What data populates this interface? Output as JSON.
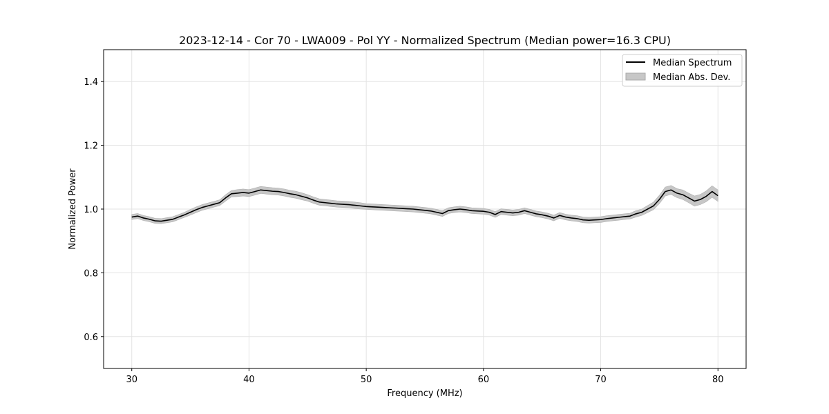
{
  "chart_data": {
    "type": "line",
    "title": "2023-12-14 - Cor 70 - LWA009 - Pol YY - Normalized Spectrum (Median power=16.3 CPU)",
    "xlabel": "Frequency (MHz)",
    "ylabel": "Normalized Power",
    "xlim": [
      27.6,
      82.4
    ],
    "ylim": [
      0.5,
      1.5
    ],
    "x_ticks": [
      30,
      40,
      50,
      60,
      70,
      80
    ],
    "x_tick_labels": [
      "30",
      "40",
      "50",
      "60",
      "70",
      "80"
    ],
    "y_ticks": [
      0.6,
      0.8,
      1.0,
      1.2,
      1.4
    ],
    "y_tick_labels": [
      "0.6",
      "0.8",
      "1.0",
      "1.2",
      "1.4"
    ],
    "grid": true,
    "legend_position": "top-right",
    "legend": [
      {
        "label": "Median Spectrum",
        "kind": "line",
        "color": "#000000"
      },
      {
        "label": "Median Abs. Dev.",
        "kind": "band",
        "color": "#c7c7c7"
      }
    ],
    "series": [
      {
        "name": "Median Spectrum",
        "color": "#000000",
        "band_color": "#c7c7c7",
        "x": [
          30.0,
          30.5,
          31.0,
          31.5,
          32.0,
          32.5,
          33.0,
          33.5,
          34.0,
          34.5,
          35.0,
          35.5,
          36.0,
          36.5,
          37.0,
          37.5,
          38.0,
          38.5,
          39.0,
          39.5,
          40.0,
          40.5,
          41.0,
          41.5,
          42.0,
          42.5,
          43.0,
          43.5,
          44.0,
          44.5,
          45.0,
          45.5,
          46.0,
          46.5,
          47.0,
          47.5,
          48.0,
          48.5,
          49.0,
          49.5,
          50.0,
          50.5,
          51.0,
          51.5,
          52.0,
          52.5,
          53.0,
          53.5,
          54.0,
          54.5,
          55.0,
          55.5,
          56.0,
          56.5,
          57.0,
          57.5,
          58.0,
          58.5,
          59.0,
          59.5,
          60.0,
          60.5,
          61.0,
          61.5,
          62.0,
          62.5,
          63.0,
          63.5,
          64.0,
          64.5,
          65.0,
          65.5,
          66.0,
          66.5,
          67.0,
          67.5,
          68.0,
          68.5,
          69.0,
          69.5,
          70.0,
          70.5,
          71.0,
          71.5,
          72.0,
          72.5,
          73.0,
          73.5,
          74.0,
          74.5,
          75.0,
          75.5,
          76.0,
          76.5,
          77.0,
          77.5,
          78.0,
          78.5,
          79.0,
          79.5,
          80.0
        ],
        "values": [
          0.975,
          0.978,
          0.972,
          0.968,
          0.963,
          0.962,
          0.965,
          0.968,
          0.975,
          0.982,
          0.99,
          0.998,
          1.005,
          1.01,
          1.015,
          1.02,
          1.035,
          1.048,
          1.05,
          1.052,
          1.05,
          1.055,
          1.06,
          1.058,
          1.056,
          1.055,
          1.052,
          1.048,
          1.045,
          1.04,
          1.035,
          1.028,
          1.022,
          1.02,
          1.018,
          1.016,
          1.015,
          1.014,
          1.012,
          1.01,
          1.008,
          1.007,
          1.006,
          1.005,
          1.004,
          1.003,
          1.002,
          1.001,
          1.0,
          0.998,
          0.996,
          0.994,
          0.99,
          0.986,
          0.995,
          0.998,
          1.0,
          0.998,
          0.995,
          0.994,
          0.993,
          0.99,
          0.983,
          0.992,
          0.99,
          0.988,
          0.99,
          0.995,
          0.99,
          0.985,
          0.982,
          0.978,
          0.972,
          0.98,
          0.975,
          0.972,
          0.97,
          0.966,
          0.965,
          0.966,
          0.967,
          0.97,
          0.972,
          0.974,
          0.976,
          0.978,
          0.985,
          0.99,
          1.0,
          1.01,
          1.03,
          1.055,
          1.06,
          1.05,
          1.045,
          1.035,
          1.025,
          1.03,
          1.04,
          1.055,
          1.042
        ],
        "mad": [
          0.008,
          0.008,
          0.008,
          0.008,
          0.008,
          0.008,
          0.008,
          0.008,
          0.008,
          0.008,
          0.009,
          0.009,
          0.009,
          0.009,
          0.009,
          0.009,
          0.01,
          0.01,
          0.011,
          0.011,
          0.011,
          0.011,
          0.011,
          0.011,
          0.011,
          0.011,
          0.011,
          0.011,
          0.011,
          0.011,
          0.01,
          0.01,
          0.01,
          0.01,
          0.01,
          0.01,
          0.01,
          0.01,
          0.01,
          0.01,
          0.009,
          0.009,
          0.009,
          0.009,
          0.009,
          0.009,
          0.009,
          0.009,
          0.009,
          0.009,
          0.009,
          0.009,
          0.009,
          0.009,
          0.009,
          0.009,
          0.009,
          0.009,
          0.009,
          0.009,
          0.009,
          0.009,
          0.009,
          0.009,
          0.009,
          0.009,
          0.009,
          0.009,
          0.009,
          0.009,
          0.009,
          0.009,
          0.009,
          0.009,
          0.009,
          0.009,
          0.009,
          0.009,
          0.009,
          0.009,
          0.009,
          0.009,
          0.009,
          0.009,
          0.009,
          0.009,
          0.01,
          0.01,
          0.011,
          0.012,
          0.013,
          0.014,
          0.014,
          0.014,
          0.015,
          0.015,
          0.016,
          0.016,
          0.017,
          0.018,
          0.018
        ]
      }
    ]
  }
}
